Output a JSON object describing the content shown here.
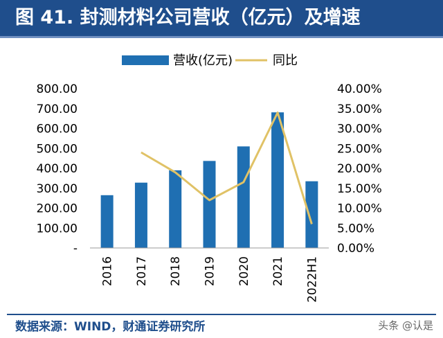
{
  "title": "图 41. 封测材料公司营收（亿元）及增速",
  "source": "数据来源：WIND，财通证券研究所",
  "watermark": "头条 @认是",
  "colors": {
    "bar": "#1f6fb2",
    "line": "#e0c266",
    "title_bg": "#1f4e8c"
  },
  "chart_data": {
    "type": "bar",
    "categories": [
      "2016",
      "2017",
      "2018",
      "2019",
      "2020",
      "2021",
      "2022H1"
    ],
    "series": [
      {
        "name": "营收(亿元)",
        "type": "bar",
        "axis": "left",
        "values": [
          265,
          328,
          390,
          437,
          510,
          681,
          335
        ]
      },
      {
        "name": "同比",
        "type": "line",
        "axis": "right",
        "values": [
          null,
          0.24,
          0.19,
          0.12,
          0.165,
          0.34,
          0.06
        ]
      }
    ],
    "y_left": {
      "ylim": [
        0,
        800
      ],
      "ticks": [
        "-",
        "100.00",
        "200.00",
        "300.00",
        "400.00",
        "500.00",
        "600.00",
        "700.00",
        "800.00"
      ]
    },
    "y_right": {
      "ylim": [
        0,
        0.4
      ],
      "ticks": [
        "0.00%",
        "5.00%",
        "10.00%",
        "15.00%",
        "20.00%",
        "25.00%",
        "30.00%",
        "35.00%",
        "40.00%"
      ]
    },
    "legend": "top",
    "grid": false
  }
}
